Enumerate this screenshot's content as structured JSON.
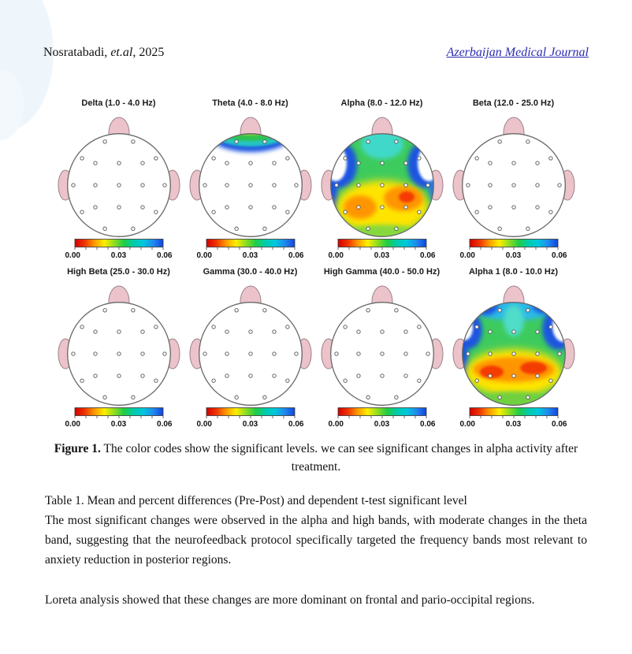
{
  "header": {
    "authors_prefix": "Nosratabadi, ",
    "authors_etal": "et.al",
    "authors_suffix": ", 2025",
    "journal": "Azerbaijan Medical Journal",
    "journal_color": "#2b2bb4"
  },
  "figure": {
    "maps": [
      {
        "title": "Delta (1.0 - 4.0 Hz)",
        "pattern": "blank",
        "significant_area": "none"
      },
      {
        "title": "Theta (4.0 - 8.0 Hz)",
        "pattern": "theta",
        "significant_area": "frontal band"
      },
      {
        "title": "Alpha (8.0 - 12.0 Hz)",
        "pattern": "alpha",
        "significant_area": "global with parieto-occipital hotspot"
      },
      {
        "title": "Beta (12.0 - 25.0 Hz)",
        "pattern": "blank",
        "significant_area": "none"
      },
      {
        "title": "High Beta (25.0 - 30.0 Hz)",
        "pattern": "blank",
        "significant_area": "none"
      },
      {
        "title": "Gamma (30.0 - 40.0 Hz)",
        "pattern": "blank",
        "significant_area": "none"
      },
      {
        "title": "High Gamma (40.0 - 50.0 Hz)",
        "pattern": "blank",
        "significant_area": "none"
      },
      {
        "title": "Alpha 1 (8.0 - 10.0 Hz)",
        "pattern": "alpha1",
        "significant_area": "global with parietal hotspot band"
      }
    ],
    "colorbar": {
      "ticks": [
        "0.00",
        "0.03",
        "0.06"
      ],
      "gradient": [
        "#d40000",
        "#ee3300",
        "#ff9900",
        "#ffee00",
        "#8fdd22",
        "#22cc44",
        "#00ccaa",
        "#00c8dd",
        "#2288ee",
        "#1144dd"
      ]
    },
    "colors": {
      "skin": "#ecc3cb",
      "skin_stroke": "#9b8289",
      "outline": "#686868",
      "electrode_stroke": "#555555"
    },
    "caption_label": "Figure 1.",
    "caption_text": " The color codes show the significant levels. we can see significant changes in alpha activity after treatment."
  },
  "body": {
    "table_caption": "Table 1. Mean and percent differences (Pre-Post) and dependent t-test significant level",
    "paragraph1": "The most significant changes were observed in the alpha and high bands, with moderate changes in the theta band, suggesting that the neurofeedback protocol specifically targeted the frequency bands most relevant to anxiety reduction in posterior regions.",
    "paragraph2": "Loreta analysis showed that these changes are more dominant on frontal and pario-occipital regions."
  }
}
